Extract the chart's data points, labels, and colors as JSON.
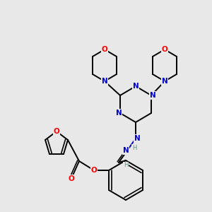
{
  "bg_color": "#e8e8e8",
  "atom_colors": {
    "C": "#000000",
    "N": "#0000cd",
    "O": "#ff0000",
    "H": "#4a9a8a"
  },
  "figsize": [
    3.0,
    3.0
  ],
  "dpi": 100,
  "bond_lw": 1.4,
  "font_size": 7.5
}
